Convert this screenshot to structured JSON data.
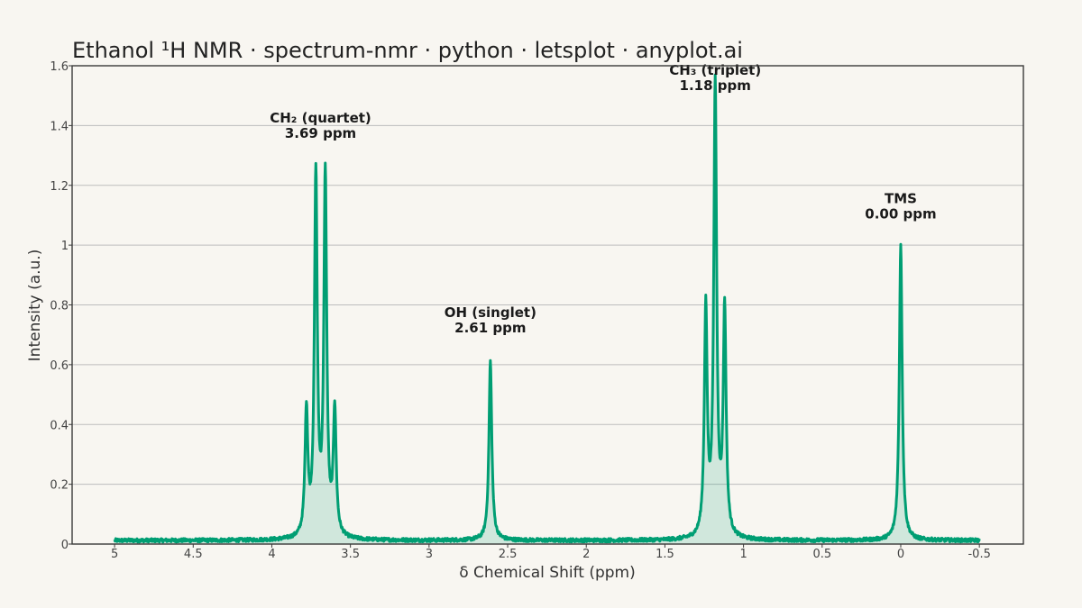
{
  "chart_data": {
    "type": "line",
    "title": "Ethanol ¹H NMR · spectrum-nmr · python · letsplot · anyplot.ai",
    "xlabel": "δ Chemical Shift (ppm)",
    "ylabel": "Intensity (a.u.)",
    "xlim": [
      5.27,
      -0.78
    ],
    "ylim": [
      0,
      1.6
    ],
    "x_reversed": true,
    "grid": true,
    "x_ticks": [
      {
        "value": 5,
        "label": "5"
      },
      {
        "value": 4.5,
        "label": "4.5"
      },
      {
        "value": 4,
        "label": "4"
      },
      {
        "value": 3.5,
        "label": "3.5"
      },
      {
        "value": 3,
        "label": "3"
      },
      {
        "value": 2.5,
        "label": "2.5"
      },
      {
        "value": 2,
        "label": "2"
      },
      {
        "value": 1.5,
        "label": "1.5"
      },
      {
        "value": 1,
        "label": "1"
      },
      {
        "value": 0.5,
        "label": "0.5"
      },
      {
        "value": 0,
        "label": "0"
      },
      {
        "value": -0.5,
        "label": "-0.5"
      }
    ],
    "y_ticks": [
      {
        "value": 0,
        "label": "0"
      },
      {
        "value": 0.2,
        "label": "0.2"
      },
      {
        "value": 0.4,
        "label": "0.4"
      },
      {
        "value": 0.6,
        "label": "0.6"
      },
      {
        "value": 0.8,
        "label": "0.8"
      },
      {
        "value": 1.0,
        "label": "1"
      },
      {
        "value": 1.2,
        "label": "1.2"
      },
      {
        "value": 1.4,
        "label": "1.4"
      },
      {
        "value": 1.6,
        "label": "1.6"
      }
    ],
    "series": [
      {
        "x_range": [
          5.0,
          -0.5
        ],
        "baseline": 0.01,
        "peaks": [
          {
            "center": 3.78,
            "height": 0.42
          },
          {
            "center": 3.72,
            "height": 1.21
          },
          {
            "center": 3.66,
            "height": 1.21
          },
          {
            "center": 3.6,
            "height": 0.42
          },
          {
            "center": 2.61,
            "height": 0.6
          },
          {
            "center": 1.24,
            "height": 0.76
          },
          {
            "center": 1.18,
            "height": 1.51
          },
          {
            "center": 1.12,
            "height": 0.76
          },
          {
            "center": 0.0,
            "height": 0.99
          }
        ],
        "color": "#009e73",
        "fill_color": "#009e73"
      }
    ],
    "annotations": [
      {
        "line1": "CH₂ (quartet)",
        "line2": "3.69 ppm",
        "x": 3.69,
        "y": 1.41
      },
      {
        "line1": "OH (singlet)",
        "line2": "2.61 ppm",
        "x": 2.61,
        "y": 0.76
      },
      {
        "line1": "CH₃ (triplet)",
        "line2": "1.18 ppm",
        "x": 1.18,
        "y": 1.57
      },
      {
        "line1": "TMS",
        "line2": "0.00 ppm",
        "x": 0.0,
        "y": 1.14
      }
    ]
  }
}
